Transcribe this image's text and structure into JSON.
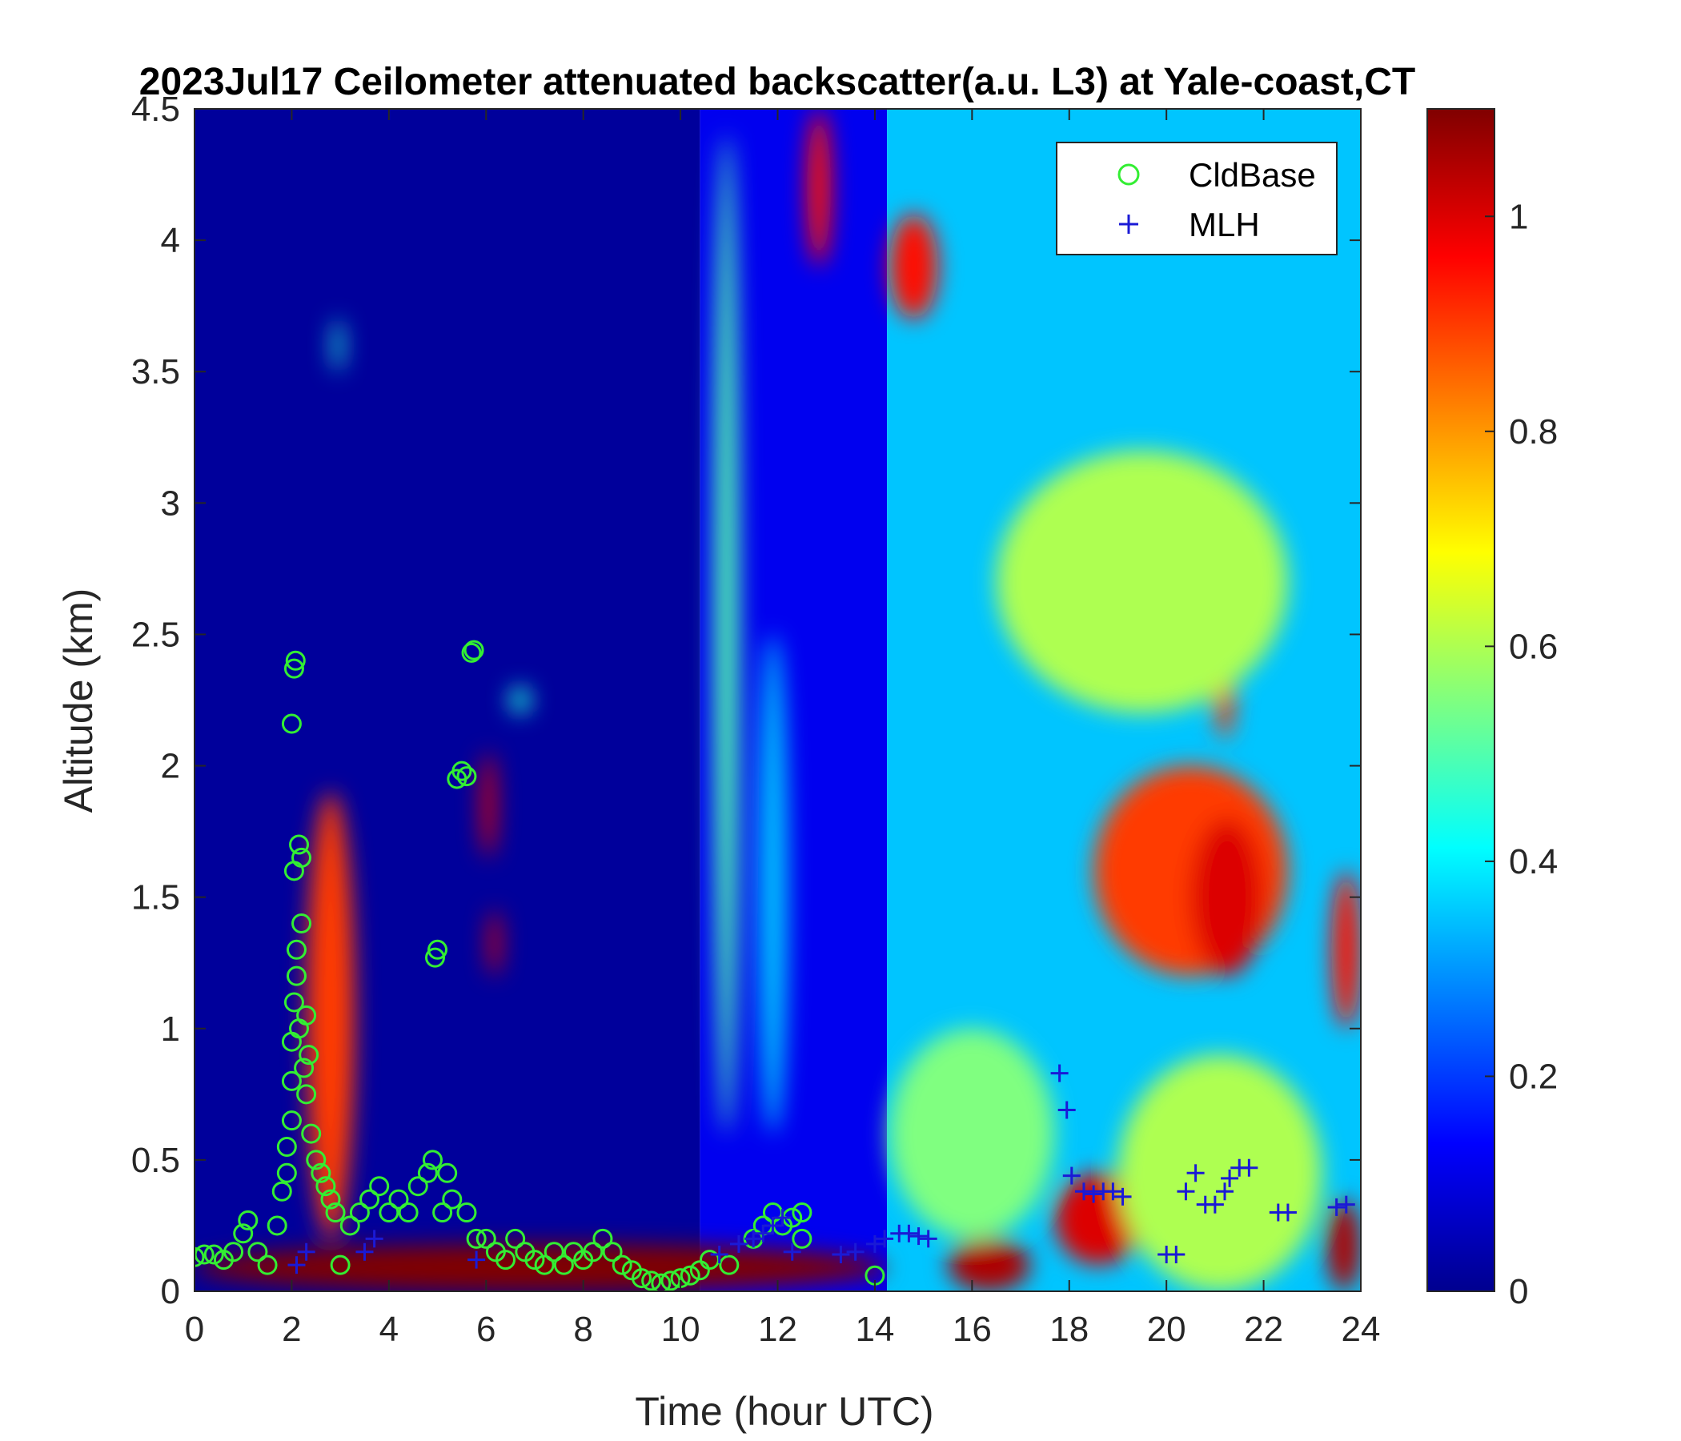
{
  "chart_data": {
    "type": "heatmap",
    "title": "2023Jul17 Ceilometer attenuated backscatter(a.u. L3) at Yale-coast,CT",
    "xlabel": "Time (hour UTC)",
    "ylabel": "Altitude (km)",
    "xlim": [
      0,
      24
    ],
    "ylim": [
      0,
      4.5
    ],
    "xticks": [
      "0",
      "2",
      "4",
      "6",
      "8",
      "10",
      "12",
      "14",
      "16",
      "18",
      "20",
      "22",
      "24"
    ],
    "yticks": [
      "0",
      "0.5",
      "1",
      "1.5",
      "2",
      "2.5",
      "3",
      "3.5",
      "4",
      "4.5"
    ],
    "colorbar": {
      "colormap": "jet",
      "clim": [
        0,
        1.1
      ],
      "ticks": [
        "0",
        "0.2",
        "0.4",
        "0.6",
        "0.8",
        "1"
      ]
    },
    "legend": {
      "position": "top-right",
      "entries": [
        {
          "label": "CldBase",
          "marker": "circle",
          "color": "#33ee33"
        },
        {
          "label": "MLH",
          "marker": "plus",
          "color": "#1a1ad6"
        }
      ]
    },
    "background_regions": [
      {
        "t": [
          0,
          10.4
        ],
        "level": 0.03
      },
      {
        "t": [
          10.4,
          14.25
        ],
        "level": 0.12
      },
      {
        "t": [
          14.25,
          24
        ],
        "level": 0.35
      }
    ],
    "features": [
      {
        "t": [
          12.6,
          13.1
        ],
        "z": [
          3.9,
          4.5
        ],
        "level": 0.95
      },
      {
        "t": [
          14.3,
          15.3
        ],
        "z": [
          3.7,
          4.1
        ],
        "level": 0.95
      },
      {
        "t": [
          10.7,
          11.2
        ],
        "z": [
          0.6,
          4.4
        ],
        "level": 0.5
      },
      {
        "t": [
          11.6,
          12.2
        ],
        "z": [
          0.6,
          2.5
        ],
        "level": 0.35
      },
      {
        "t": [
          18.5,
          22.5
        ],
        "z": [
          1.2,
          2.0
        ],
        "level": 0.9
      },
      {
        "t": [
          20.5,
          22.0
        ],
        "z": [
          1.2,
          1.8
        ],
        "level": 1.0
      },
      {
        "t": [
          23.4,
          24.0
        ],
        "z": [
          1.0,
          1.6
        ],
        "level": 0.95
      },
      {
        "t": [
          21.0,
          21.4
        ],
        "z": [
          2.1,
          2.5
        ],
        "level": 0.9
      },
      {
        "t": [
          16.5,
          22.5
        ],
        "z": [
          2.2,
          3.2
        ],
        "level": 0.6
      },
      {
        "t": [
          14.3,
          17.7
        ],
        "z": [
          0.2,
          1.0
        ],
        "level": 0.55
      },
      {
        "t": [
          17.7,
          19.5
        ],
        "z": [
          0.1,
          0.45
        ],
        "level": 1.0
      },
      {
        "t": [
          15.5,
          17.2
        ],
        "z": [
          0.0,
          0.2
        ],
        "level": 1.05
      },
      {
        "t": [
          23.3,
          24.0
        ],
        "z": [
          0.0,
          0.35
        ],
        "level": 1.05
      },
      {
        "t": [
          19.0,
          23.2
        ],
        "z": [
          0.0,
          0.9
        ],
        "level": 0.6
      },
      {
        "t": [
          0,
          14.25
        ],
        "z": [
          0.0,
          0.18
        ],
        "level": 1.1
      },
      {
        "t": [
          2.3,
          3.3
        ],
        "z": [
          0.2,
          1.9
        ],
        "level": 0.9
      },
      {
        "t": [
          5.9,
          6.2
        ],
        "z": [
          1.65,
          2.05
        ],
        "level": 1.0
      },
      {
        "t": [
          6.05,
          6.3
        ],
        "z": [
          1.2,
          1.45
        ],
        "level": 1.0
      },
      {
        "t": [
          2.85,
          3.05
        ],
        "z": [
          3.5,
          3.7
        ],
        "level": 0.45
      },
      {
        "t": [
          6.5,
          6.9
        ],
        "z": [
          2.2,
          2.3
        ],
        "level": 0.45
      }
    ],
    "series": [
      {
        "name": "CldBase",
        "marker": "circle",
        "points": [
          [
            0.0,
            0.13
          ],
          [
            0.2,
            0.14
          ],
          [
            0.4,
            0.14
          ],
          [
            0.6,
            0.12
          ],
          [
            0.8,
            0.15
          ],
          [
            1.0,
            0.22
          ],
          [
            1.1,
            0.27
          ],
          [
            1.3,
            0.15
          ],
          [
            1.5,
            0.1
          ],
          [
            1.7,
            0.25
          ],
          [
            1.8,
            0.38
          ],
          [
            1.9,
            0.45
          ],
          [
            1.9,
            0.55
          ],
          [
            2.0,
            0.65
          ],
          [
            2.0,
            0.8
          ],
          [
            2.0,
            0.95
          ],
          [
            2.05,
            1.1
          ],
          [
            2.1,
            1.2
          ],
          [
            2.1,
            1.3
          ],
          [
            2.2,
            1.4
          ],
          [
            2.15,
            1.0
          ],
          [
            2.25,
            0.85
          ],
          [
            2.3,
            0.75
          ],
          [
            2.05,
            1.6
          ],
          [
            2.15,
            1.7
          ],
          [
            2.2,
            1.65
          ],
          [
            2.0,
            2.16
          ],
          [
            2.05,
            2.37
          ],
          [
            2.08,
            2.4
          ],
          [
            2.3,
            1.05
          ],
          [
            2.35,
            0.9
          ],
          [
            2.4,
            0.6
          ],
          [
            2.5,
            0.5
          ],
          [
            2.6,
            0.45
          ],
          [
            2.7,
            0.4
          ],
          [
            2.8,
            0.35
          ],
          [
            2.9,
            0.3
          ],
          [
            3.0,
            0.1
          ],
          [
            3.2,
            0.25
          ],
          [
            3.4,
            0.3
          ],
          [
            3.6,
            0.35
          ],
          [
            3.8,
            0.4
          ],
          [
            4.0,
            0.3
          ],
          [
            4.2,
            0.35
          ],
          [
            4.4,
            0.3
          ],
          [
            4.6,
            0.4
          ],
          [
            4.8,
            0.45
          ],
          [
            4.9,
            0.5
          ],
          [
            4.95,
            1.27
          ],
          [
            5.0,
            1.3
          ],
          [
            5.1,
            0.3
          ],
          [
            5.2,
            0.45
          ],
          [
            5.3,
            0.35
          ],
          [
            5.4,
            1.95
          ],
          [
            5.5,
            1.98
          ],
          [
            5.6,
            1.96
          ],
          [
            5.7,
            2.43
          ],
          [
            5.75,
            2.44
          ],
          [
            5.6,
            0.3
          ],
          [
            5.8,
            0.2
          ],
          [
            6.0,
            0.2
          ],
          [
            6.2,
            0.15
          ],
          [
            6.4,
            0.12
          ],
          [
            6.6,
            0.2
          ],
          [
            6.8,
            0.15
          ],
          [
            7.0,
            0.12
          ],
          [
            7.2,
            0.1
          ],
          [
            7.4,
            0.15
          ],
          [
            7.6,
            0.1
          ],
          [
            7.8,
            0.15
          ],
          [
            8.0,
            0.12
          ],
          [
            8.2,
            0.15
          ],
          [
            8.4,
            0.2
          ],
          [
            8.6,
            0.15
          ],
          [
            8.8,
            0.1
          ],
          [
            9.0,
            0.08
          ],
          [
            9.2,
            0.05
          ],
          [
            9.4,
            0.04
          ],
          [
            9.6,
            0.03
          ],
          [
            9.8,
            0.04
          ],
          [
            10.0,
            0.05
          ],
          [
            10.2,
            0.06
          ],
          [
            10.4,
            0.08
          ],
          [
            10.6,
            0.12
          ],
          [
            11.0,
            0.1
          ],
          [
            11.5,
            0.2
          ],
          [
            11.7,
            0.25
          ],
          [
            11.9,
            0.3
          ],
          [
            12.1,
            0.25
          ],
          [
            12.3,
            0.28
          ],
          [
            12.5,
            0.3
          ],
          [
            12.5,
            0.2
          ],
          [
            14.0,
            0.06
          ]
        ]
      },
      {
        "name": "MLH",
        "marker": "plus",
        "points": [
          [
            2.1,
            0.1
          ],
          [
            2.3,
            0.15
          ],
          [
            3.5,
            0.15
          ],
          [
            3.7,
            0.2
          ],
          [
            5.8,
            0.12
          ],
          [
            10.8,
            0.14
          ],
          [
            11.2,
            0.18
          ],
          [
            11.5,
            0.2
          ],
          [
            11.7,
            0.22
          ],
          [
            11.9,
            0.25
          ],
          [
            12.1,
            0.28
          ],
          [
            12.3,
            0.15
          ],
          [
            13.3,
            0.14
          ],
          [
            13.6,
            0.15
          ],
          [
            14.0,
            0.18
          ],
          [
            14.2,
            0.2
          ],
          [
            14.5,
            0.22
          ],
          [
            14.7,
            0.22
          ],
          [
            14.9,
            0.21
          ],
          [
            15.1,
            0.2
          ],
          [
            17.8,
            0.83
          ],
          [
            17.95,
            0.69
          ],
          [
            18.05,
            0.44
          ],
          [
            18.3,
            0.38
          ],
          [
            18.5,
            0.37
          ],
          [
            18.7,
            0.38
          ],
          [
            18.9,
            0.38
          ],
          [
            19.1,
            0.36
          ],
          [
            20.0,
            0.14
          ],
          [
            20.2,
            0.14
          ],
          [
            20.4,
            0.38
          ],
          [
            20.6,
            0.45
          ],
          [
            20.8,
            0.33
          ],
          [
            21.0,
            0.33
          ],
          [
            21.2,
            0.38
          ],
          [
            21.3,
            0.43
          ],
          [
            21.5,
            0.47
          ],
          [
            21.7,
            0.47
          ],
          [
            22.3,
            0.3
          ],
          [
            22.5,
            0.3
          ],
          [
            23.5,
            0.32
          ],
          [
            23.7,
            0.33
          ]
        ]
      }
    ]
  }
}
